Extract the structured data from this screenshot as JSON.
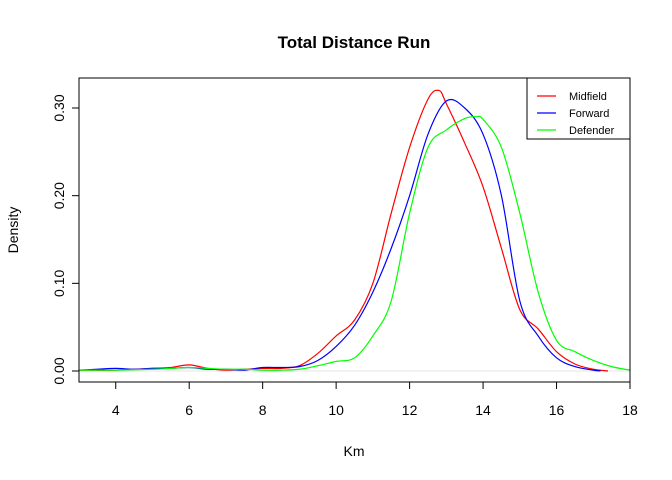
{
  "chart_data": {
    "type": "line",
    "title": "Total Distance Run",
    "xlabel": "Km",
    "ylabel": "Density",
    "xlim": [
      3,
      18
    ],
    "ylim": [
      0,
      0.32
    ],
    "xticks": [
      4,
      6,
      8,
      10,
      12,
      14,
      16,
      18
    ],
    "yticks": [
      0.0,
      0.1,
      0.2,
      0.3
    ],
    "ytick_labels": [
      "0.00",
      "0.10",
      "0.20",
      "0.30"
    ],
    "grid": false,
    "legend_position": "top-right",
    "baseline": {
      "y": 0,
      "color": "#e6e6e6"
    },
    "series": [
      {
        "name": "Midfield",
        "color": "#ff0000",
        "x": [
          3.0,
          4.0,
          5.0,
          5.5,
          6.0,
          6.5,
          7.0,
          7.5,
          8.0,
          8.5,
          9.0,
          9.5,
          10.0,
          10.5,
          11.0,
          11.5,
          12.0,
          12.5,
          12.8,
          13.0,
          13.5,
          14.0,
          14.5,
          15.0,
          15.5,
          16.0,
          16.5,
          17.0,
          17.4
        ],
        "y": [
          0.001,
          0.001,
          0.003,
          0.004,
          0.007,
          0.003,
          0.001,
          0.002,
          0.003,
          0.003,
          0.006,
          0.02,
          0.04,
          0.058,
          0.1,
          0.18,
          0.255,
          0.31,
          0.32,
          0.305,
          0.26,
          0.21,
          0.14,
          0.07,
          0.048,
          0.022,
          0.008,
          0.002,
          0.0
        ]
      },
      {
        "name": "Forward",
        "color": "#0000ff",
        "x": [
          3.0,
          3.5,
          4.0,
          4.5,
          5.0,
          5.5,
          6.0,
          6.5,
          7.0,
          7.5,
          8.0,
          8.5,
          9.0,
          9.5,
          10.0,
          10.5,
          11.0,
          11.5,
          12.0,
          12.5,
          13.0,
          13.5,
          14.0,
          14.5,
          15.0,
          15.5,
          16.0,
          16.5,
          17.0,
          17.2
        ],
        "y": [
          0.001,
          0.002,
          0.003,
          0.002,
          0.003,
          0.003,
          0.004,
          0.002,
          0.002,
          0.001,
          0.004,
          0.004,
          0.005,
          0.012,
          0.028,
          0.052,
          0.09,
          0.14,
          0.2,
          0.27,
          0.308,
          0.3,
          0.27,
          0.2,
          0.08,
          0.04,
          0.015,
          0.005,
          0.001,
          0.0
        ]
      },
      {
        "name": "Defender",
        "color": "#00ff00",
        "x": [
          3.0,
          4.0,
          5.0,
          5.5,
          6.0,
          6.5,
          7.0,
          7.5,
          8.0,
          8.5,
          9.0,
          9.5,
          10.0,
          10.5,
          11.0,
          11.5,
          12.0,
          12.5,
          13.0,
          13.5,
          13.8,
          14.0,
          14.5,
          15.0,
          15.5,
          16.0,
          16.5,
          17.0,
          17.5,
          18.0
        ],
        "y": [
          0.001,
          0.001,
          0.002,
          0.003,
          0.004,
          0.003,
          0.002,
          0.002,
          0.001,
          0.001,
          0.002,
          0.006,
          0.011,
          0.015,
          0.04,
          0.08,
          0.18,
          0.255,
          0.275,
          0.288,
          0.29,
          0.287,
          0.255,
          0.18,
          0.09,
          0.035,
          0.022,
          0.012,
          0.005,
          0.001
        ]
      }
    ]
  }
}
